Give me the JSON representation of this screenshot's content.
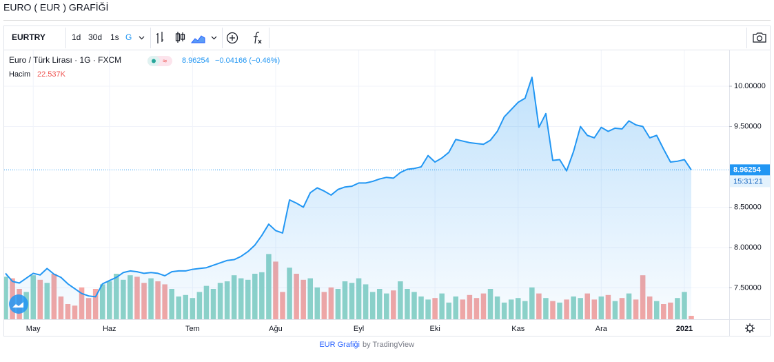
{
  "page": {
    "title": "EURO ( EUR ) GRAFİĞİ",
    "footer_link": "EUR Grafiği",
    "footer_by": "by TradingView"
  },
  "toolbar": {
    "symbol": "EURTRY",
    "ranges": [
      "1d",
      "30d",
      "1s",
      "G"
    ]
  },
  "chart_data": {
    "type": "area",
    "title": "Euro / Türk Lirası · 1G · FXCM",
    "change_label": "−0.04166 (−0.46%)",
    "time_label": "15:31:21",
    "categories": [
      null,
      null,
      null,
      null,
      "May",
      null,
      null,
      null,
      null,
      null,
      null,
      null,
      null,
      null,
      null,
      "Haz",
      null,
      null,
      null,
      null,
      null,
      null,
      null,
      null,
      null,
      null,
      null,
      "Tem",
      null,
      null,
      null,
      null,
      null,
      null,
      null,
      null,
      null,
      null,
      null,
      "Ağu",
      null,
      null,
      null,
      null,
      null,
      null,
      null,
      null,
      null,
      null,
      null,
      "Eyl",
      null,
      null,
      null,
      null,
      null,
      null,
      null,
      null,
      null,
      null,
      "Eki",
      null,
      null,
      null,
      null,
      null,
      null,
      null,
      null,
      null,
      null,
      null,
      "Kas",
      null,
      null,
      null,
      null,
      null,
      null,
      null,
      null,
      null,
      null,
      null,
      "Ara",
      null,
      null,
      null,
      null,
      null,
      null,
      null,
      null,
      null,
      null,
      null,
      "2021",
      null
    ],
    "series": [
      {
        "name": "Euro / Türk Lirası",
        "color": "#2196f3",
        "values": [
          7.68,
          7.58,
          7.56,
          7.62,
          7.68,
          7.66,
          7.74,
          7.67,
          7.63,
          7.55,
          7.49,
          7.43,
          7.4,
          7.39,
          7.55,
          7.59,
          7.63,
          7.69,
          7.71,
          7.7,
          7.68,
          7.69,
          7.68,
          7.65,
          7.7,
          7.71,
          7.71,
          7.73,
          7.74,
          7.75,
          7.78,
          7.81,
          7.84,
          7.85,
          7.89,
          7.95,
          8.03,
          8.15,
          8.29,
          8.21,
          8.18,
          8.59,
          8.55,
          8.5,
          8.68,
          8.74,
          8.7,
          8.65,
          8.72,
          8.75,
          8.76,
          8.8,
          8.8,
          8.82,
          8.85,
          8.87,
          8.86,
          8.93,
          8.97,
          8.98,
          9.0,
          9.14,
          9.06,
          9.11,
          9.18,
          9.34,
          9.32,
          9.3,
          9.29,
          9.28,
          9.33,
          9.44,
          9.62,
          9.71,
          9.8,
          9.85,
          10.11,
          9.49,
          9.66,
          9.08,
          9.09,
          8.95,
          9.19,
          9.5,
          9.39,
          9.36,
          9.49,
          9.44,
          9.48,
          9.47,
          9.57,
          9.52,
          9.5,
          9.36,
          9.39,
          9.22,
          9.06,
          9.07,
          9.09,
          8.96254
        ]
      }
    ],
    "volume": {
      "name": "Hacim",
      "last_label": "22.537K",
      "up_color": "#8fd3c7",
      "down_color": "#f5a6a3",
      "vlim": [
        0,
        500000
      ],
      "values": [
        280000,
        270000,
        200000,
        180000,
        290000,
        260000,
        240000,
        300000,
        150000,
        100000,
        90000,
        210000,
        140000,
        200000,
        230000,
        250000,
        300000,
        260000,
        290000,
        280000,
        240000,
        270000,
        250000,
        230000,
        200000,
        150000,
        160000,
        140000,
        180000,
        220000,
        200000,
        240000,
        250000,
        290000,
        270000,
        260000,
        300000,
        310000,
        430000,
        380000,
        180000,
        340000,
        300000,
        260000,
        270000,
        210000,
        180000,
        210000,
        200000,
        250000,
        240000,
        270000,
        230000,
        180000,
        200000,
        170000,
        190000,
        250000,
        200000,
        180000,
        150000,
        130000,
        140000,
        170000,
        110000,
        150000,
        130000,
        160000,
        140000,
        170000,
        200000,
        150000,
        110000,
        130000,
        140000,
        120000,
        210000,
        170000,
        140000,
        120000,
        110000,
        130000,
        150000,
        140000,
        170000,
        130000,
        150000,
        160000,
        120000,
        140000,
        170000,
        130000,
        290000,
        150000,
        120000,
        100000,
        110000,
        140000,
        180000,
        22537
      ]
    },
    "ylim": [
      7.111,
      10.453
    ],
    "yticks": [
      {
        "value": 7.5,
        "label": "7.50000"
      },
      {
        "value": 8,
        "label": "8.00000"
      },
      {
        "value": 8.5,
        "label": "8.50000"
      },
      {
        "value": 9.5,
        "label": "9.50000"
      },
      {
        "value": 10,
        "label": "10.00000"
      }
    ],
    "grid": true
  }
}
